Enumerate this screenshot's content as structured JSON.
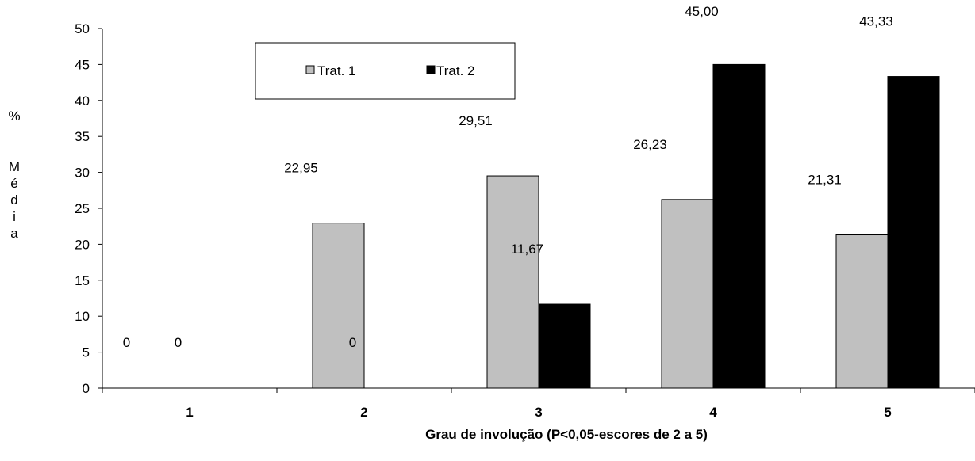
{
  "chart_data": {
    "type": "bar",
    "categories": [
      "1",
      "2",
      "3",
      "4",
      "5"
    ],
    "series": [
      {
        "name": "Trat. 1",
        "values": [
          0,
          22.95,
          29.51,
          26.23,
          21.31
        ],
        "labels": [
          "0",
          "22,95",
          "29,51",
          "26,23",
          "21,31"
        ],
        "color": "#c0c0c0"
      },
      {
        "name": "Trat. 2",
        "values": [
          0,
          0,
          11.67,
          45.0,
          43.33
        ],
        "labels": [
          "0",
          "0",
          "11,67",
          "45,00",
          "43,33"
        ],
        "color": "#000000"
      }
    ],
    "y_ticks": [
      "0",
      "5",
      "10",
      "15",
      "20",
      "25",
      "30",
      "35",
      "40",
      "45",
      "50"
    ],
    "ylim": [
      0,
      50
    ],
    "ylabel_chars": [
      "%",
      "M",
      "é",
      "d",
      "i",
      "a"
    ],
    "xlabel": "Grau de involução  (P<0,05-escores  de 2 a 5)",
    "legend_position": "top-center",
    "grid": false
  }
}
